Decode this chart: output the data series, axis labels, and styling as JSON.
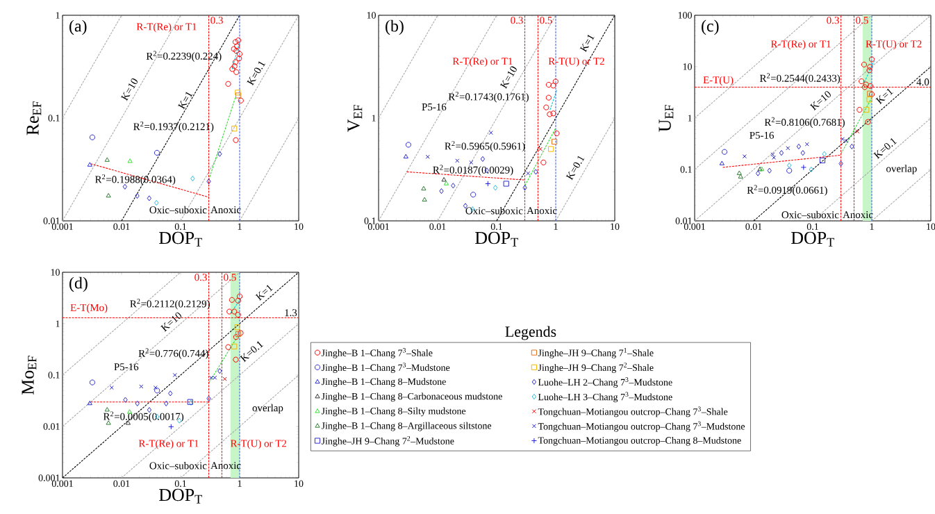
{
  "chart_data": [
    {
      "type": "scatter",
      "title": "(a)",
      "xlabel": "DOP$_{T}$",
      "ylabel": "Re$_{EF}$",
      "log": "xy",
      "xlim": [
        0.001,
        10
      ],
      "ylim": [
        0.01,
        1
      ],
      "xticks": [
        0.001,
        0.01,
        0.1,
        1,
        10
      ],
      "yticks": [
        0.01,
        0.1,
        1
      ],
      "series": [
        {
          "type": "line",
          "color": "#aaaaaa",
          "line_style": "dashed",
          "x": [
            0.001,
            0.01
          ],
          "values": [
            0.1,
            1
          ]
        },
        {
          "type": "line",
          "color": "#aaaaaa",
          "line_style": "dashed",
          "x": [
            0.001,
            0.1
          ],
          "values": [
            0.01,
            1
          ]
        },
        {
          "type": "line",
          "color": "#000000",
          "line_style": "dashed",
          "x": [
            0.01,
            1
          ],
          "values": [
            0.01,
            1
          ]
        },
        {
          "type": "line",
          "color": "#aaaaaa",
          "line_style": "dashed",
          "x": [
            0.1,
            10
          ],
          "values": [
            0.01,
            1
          ]
        },
        {
          "type": "line",
          "color": "#aaaaaa",
          "line_style": "dashed",
          "x": [
            1,
            10
          ],
          "values": [
            0.01,
            0.1
          ]
        },
        {
          "type": "line",
          "color": "#ff0000",
          "line_style": "dashed",
          "x": [
            0.003,
            0.3
          ],
          "values": [
            0.036,
            0.017
          ]
        },
        {
          "type": "line",
          "color": "#33dd33",
          "line_style": "dashed",
          "x": [
            0.3,
            0.85
          ],
          "values": [
            0.025,
            0.16
          ]
        },
        {
          "type": "line",
          "color": "#00ccdd",
          "line_style": "dashed",
          "x": [
            0.75,
            1.0
          ],
          "values": [
            0.3,
            0.55
          ]
        },
        {
          "color": "#ff0000",
          "marker": "circle",
          "x": [
            0.85,
            0.95,
            0.9,
            0.8,
            0.88,
            1.0,
            0.98,
            0.85,
            0.75,
            0.82,
            0.88,
            0.64,
            1.05,
            0.86
          ],
          "values": [
            0.55,
            0.57,
            0.5,
            0.47,
            0.45,
            0.42,
            0.38,
            0.35,
            0.3,
            0.32,
            0.28,
            0.215,
            0.148,
            0.061
          ]
        },
        {
          "color": "#2b2bd0",
          "marker": "circle",
          "x": [
            0.0032,
            0.0398
          ],
          "values": [
            0.065,
            0.046
          ]
        },
        {
          "color": "#2b2bd0",
          "marker": "triangle",
          "x": [
            0.0029
          ],
          "values": [
            0.035
          ]
        },
        {
          "color": "#33dd33",
          "marker": "triangle",
          "x": [
            0.0139
          ],
          "values": [
            0.038
          ]
        },
        {
          "color": "#2e7d32",
          "marker": "triangle",
          "x": [
            0.0057,
            0.006
          ],
          "values": [
            0.039,
            0.0175
          ]
        },
        {
          "color": "#e8701a",
          "marker": "square",
          "x": [
            0.95
          ],
          "values": [
            0.166
          ]
        },
        {
          "color": "#f5b800",
          "marker": "square",
          "x": [
            0.93,
            0.81
          ],
          "values": [
            0.177,
            0.079
          ]
        },
        {
          "color": "#2b2bd0",
          "marker": "diamond",
          "x": [
            0.0114,
            0.0184,
            0.0294,
            0.3,
            0.46
          ],
          "values": [
            0.0215,
            0.0175,
            0.0166,
            0.0242,
            0.0448
          ]
        },
        {
          "color": "#33bbdd",
          "marker": "diamond",
          "x": [
            0.16,
            0.039
          ],
          "values": [
            0.0258,
            0.015
          ]
        }
      ],
      "ref_lines": [
        {
          "axis": "x",
          "value": 0.3,
          "label": "0.3",
          "color": "#ff0000",
          "line_style": "dashed"
        },
        {
          "axis": "x",
          "value": 1,
          "color": "#3355dd",
          "line_style": "dashed"
        }
      ],
      "annotations": [
        "R-T(Re) or T1",
        "R$^{2}$=0.2239(0.224)",
        "R$^{2}$=0.1937(0.2121)",
        "R$^{2}$=0.1988(0.0364)",
        "K=10",
        "K=1",
        "K=0.1",
        "Oxic–suboxic",
        "Anoxic"
      ]
    },
    {
      "type": "scatter",
      "title": "(b)",
      "xlabel": "DOP$_{T}$",
      "ylabel": "V$_{EF}$",
      "log": "xy",
      "xlim": [
        0.001,
        10
      ],
      "ylim": [
        0.1,
        10
      ],
      "xticks": [
        0.001,
        0.01,
        0.1,
        1,
        10
      ],
      "yticks": [
        0.1,
        1,
        10
      ],
      "series": [
        {
          "type": "line",
          "color": "#aaaaaa",
          "line_style": "dashed",
          "x": [
            0.001,
            0.01
          ],
          "values": [
            1,
            10
          ]
        },
        {
          "type": "line",
          "color": "#aaaaaa",
          "line_style": "dashed",
          "x": [
            0.001,
            0.1
          ],
          "values": [
            0.1,
            10
          ]
        },
        {
          "type": "line",
          "color": "#aaaaaa",
          "line_style": "dashed",
          "x": [
            0.01,
            1
          ],
          "values": [
            0.1,
            10
          ]
        },
        {
          "type": "line",
          "color": "#000000",
          "line_style": "dashed",
          "x": [
            0.1,
            10
          ],
          "values": [
            0.1,
            10
          ]
        },
        {
          "type": "line",
          "color": "#aaaaaa",
          "line_style": "dashed",
          "x": [
            1,
            10
          ],
          "values": [
            0.1,
            1
          ]
        },
        {
          "type": "line",
          "color": "#ff0000",
          "line_style": "dashed",
          "x": [
            0.003,
            0.3
          ],
          "values": [
            0.3,
            0.25
          ]
        },
        {
          "type": "line",
          "color": "#33dd33",
          "line_style": "dashed",
          "x": [
            0.3,
            1.0
          ],
          "values": [
            0.22,
            0.8
          ]
        },
        {
          "type": "line",
          "color": "#00ccdd",
          "line_style": "dashed",
          "x": [
            0.8,
            1.05
          ],
          "values": [
            1.2,
            1.9
          ]
        },
        {
          "color": "#ff0000",
          "marker": "circle",
          "x": [
            0.76,
            0.995,
            0.91,
            0.76,
            0.69,
            0.79,
            0.91,
            1.04,
            0.62
          ],
          "values": [
            2.11,
            2.27,
            2.07,
            1.58,
            1.27,
            1.09,
            1.11,
            0.71,
            0.37
          ]
        },
        {
          "color": "#2b2bd0",
          "marker": "circle",
          "x": [
            0.0032,
            0.04
          ],
          "values": [
            0.55,
            0.18
          ]
        },
        {
          "color": "#2b2bd0",
          "marker": "triangle",
          "x": [
            0.0029
          ],
          "values": [
            0.42
          ]
        },
        {
          "color": "#333333",
          "marker": "triangle",
          "x": [
            0.0128
          ],
          "values": [
            0.25
          ]
        },
        {
          "color": "#33dd33",
          "marker": "triangle",
          "x": [
            0.014
          ],
          "values": [
            0.23
          ]
        },
        {
          "color": "#2e7d32",
          "marker": "triangle",
          "x": [
            0.0058,
            0.006
          ],
          "values": [
            0.205,
            0.16
          ]
        },
        {
          "color": "#2b2bd0",
          "marker": "square",
          "x": [
            0.145
          ],
          "values": [
            0.23
          ]
        },
        {
          "color": "#e8701a",
          "marker": "square",
          "x": [
            0.95
          ],
          "values": [
            0.59
          ]
        },
        {
          "color": "#f5b800",
          "marker": "square",
          "x": [
            0.83
          ],
          "values": [
            0.5
          ]
        },
        {
          "color": "#2b2bd0",
          "marker": "diamond",
          "x": [
            0.0116,
            0.0183,
            0.058,
            0.068,
            0.0295,
            0.3,
            0.46
          ],
          "values": [
            0.195,
            0.22,
            0.4,
            0.31,
            0.14,
            0.21,
            0.3
          ]
        },
        {
          "color": "#33bbdd",
          "marker": "diamond",
          "x": [
            0.095,
            0.039
          ],
          "values": [
            0.21,
            0.13
          ]
        },
        {
          "color": "#ff0000",
          "marker": "cross",
          "x": [
            0.55
          ],
          "values": [
            0.5
          ]
        },
        {
          "color": "#2020d0",
          "marker": "cross",
          "x": [
            0.08,
            0.0068,
            0.0215,
            0.037,
            0.34
          ],
          "values": [
            0.72,
            0.42,
            0.385,
            0.37,
            0.29
          ]
        },
        {
          "color": "#2020d0",
          "marker": "plus",
          "x": [
            0.071
          ],
          "values": [
            0.23
          ]
        }
      ],
      "ref_lines": [
        {
          "axis": "x",
          "value": 0.3,
          "label": "0.3",
          "color": "#ff0000",
          "line_style": "dashed"
        },
        {
          "axis": "x",
          "value": 0.5,
          "label": "0.5",
          "color": "#ff0000",
          "line_style": "dashed"
        },
        {
          "axis": "x",
          "value": 1,
          "color": "#3355dd",
          "line_style": "dashed"
        }
      ],
      "annotations": [
        "R-T(Re) or T1",
        "R-T(U) or T2",
        "R$^{2}$=0.1743(0.1761)",
        "P5-16",
        "R$^{2}$=0.5965(0.5961)",
        "R$^{2}$=0.0187(0.0029)",
        "K=10",
        "K=1",
        "K=0.1",
        "Oxic–suboxic",
        "Anoxic"
      ]
    },
    {
      "type": "scatter",
      "title": "(c)",
      "xlabel": "DOP$_{T}$",
      "ylabel": "U$_{EF}$",
      "log": "xy",
      "xlim": [
        0.001,
        10
      ],
      "ylim": [
        0.01,
        100
      ],
      "xticks": [
        0.001,
        0.01,
        0.1,
        1,
        10
      ],
      "yticks": [
        0.01,
        0.1,
        1,
        10,
        100
      ],
      "series": [
        {
          "type": "line",
          "color": "#aaaaaa",
          "line_style": "dashed",
          "x": [
            0.001,
            0.1
          ],
          "values": [
            1,
            100
          ]
        },
        {
          "type": "line",
          "color": "#aaaaaa",
          "line_style": "dashed",
          "x": [
            0.001,
            1
          ],
          "values": [
            0.1,
            100
          ]
        },
        {
          "type": "line",
          "color": "#aaaaaa",
          "line_style": "dashed",
          "x": [
            0.001,
            10
          ],
          "values": [
            0.01,
            100
          ]
        },
        {
          "type": "line",
          "color": "#000000",
          "line_style": "dashed",
          "x": [
            0.01,
            10
          ],
          "values": [
            0.01,
            10
          ]
        },
        {
          "type": "line",
          "color": "#aaaaaa",
          "line_style": "dashed",
          "x": [
            0.1,
            10
          ],
          "values": [
            0.01,
            1
          ]
        },
        {
          "type": "line",
          "color": "#aaaaaa",
          "line_style": "dashed",
          "x": [
            1,
            10
          ],
          "values": [
            0.01,
            0.1
          ]
        },
        {
          "type": "line",
          "color": "#ff0000",
          "line_style": "dashed",
          "x": [
            0.003,
            0.3
          ],
          "values": [
            0.11,
            0.19
          ]
        },
        {
          "type": "line",
          "color": "#33dd33",
          "line_style": "dashed",
          "x": [
            0.3,
            1.0
          ],
          "values": [
            0.2,
            2.5
          ]
        },
        {
          "type": "line",
          "color": "#00ccdd",
          "line_style": "dashed",
          "x": [
            0.75,
            1.1
          ],
          "values": [
            5,
            13
          ]
        },
        {
          "color": "#ff0000",
          "marker": "circle",
          "x": [
            0.74,
            1.0,
            0.93,
            0.91,
            0.67,
            0.8,
            0.95,
            0.76,
            1.0,
            0.62,
            0.86
          ],
          "values": [
            11,
            13.9,
            9.9,
            8.5,
            5.2,
            4.5,
            4.2,
            4.0,
            2.9,
            1.45,
            0.84
          ]
        },
        {
          "color": "#2b2bd0",
          "marker": "circle",
          "x": [
            0.0032,
            0.04
          ],
          "values": [
            0.22,
            0.095
          ]
        },
        {
          "color": "#2b2bd0",
          "marker": "triangle",
          "x": [
            0.0029
          ],
          "values": [
            0.13
          ]
        },
        {
          "color": "#333333",
          "marker": "triangle",
          "x": [
            0.0128
          ],
          "values": [
            0.1
          ]
        },
        {
          "color": "#33dd33",
          "marker": "triangle",
          "x": [
            0.0137
          ],
          "values": [
            0.1
          ]
        },
        {
          "color": "#2e7d32",
          "marker": "triangle",
          "x": [
            0.0057,
            0.006
          ],
          "values": [
            0.084,
            0.072
          ]
        },
        {
          "color": "#2b2bd0",
          "marker": "square",
          "x": [
            0.146
          ],
          "values": [
            0.15
          ]
        },
        {
          "color": "#e8701a",
          "marker": "square",
          "x": [
            0.93
          ],
          "values": [
            3.0
          ]
        },
        {
          "color": "#f5b800",
          "marker": "square",
          "x": [
            0.91,
            0.81
          ],
          "values": [
            2.3,
            1.45
          ]
        },
        {
          "color": "#2b2bd0",
          "marker": "diamond",
          "x": [
            0.0118,
            0.0185,
            0.0295,
            0.058,
            0.068,
            0.3,
            0.46
          ],
          "values": [
            0.084,
            0.095,
            0.21,
            0.28,
            0.21,
            0.13,
            0.28
          ]
        },
        {
          "color": "#33bbdd",
          "marker": "diamond",
          "x": [
            0.094,
            0.04,
            0.157
          ],
          "values": [
            0.1,
            0.12,
            0.2
          ]
        },
        {
          "color": "#ff0000",
          "marker": "cross",
          "x": [
            0.57
          ],
          "values": [
            0.55
          ]
        },
        {
          "color": "#2020d0",
          "marker": "cross",
          "x": [
            0.08,
            0.007,
            0.021,
            0.022,
            0.038,
            0.32,
            0.37
          ],
          "values": [
            0.31,
            0.18,
            0.196,
            0.17,
            0.26,
            0.39,
            0.36
          ]
        },
        {
          "color": "#2020d0",
          "marker": "plus",
          "x": [
            0.07
          ],
          "values": [
            0.11
          ]
        }
      ],
      "ref_lines": [
        {
          "axis": "x",
          "value": 0.3,
          "label": "0.3",
          "color": "#ff0000",
          "line_style": "dashed"
        },
        {
          "axis": "x",
          "value": 0.5,
          "label": "0.5",
          "color": "#ff0000",
          "line_style": "dashed"
        },
        {
          "axis": "x",
          "value": 1,
          "color": "#3355dd",
          "line_style": "dashed"
        },
        {
          "axis": "y",
          "value": 4.0,
          "label": "4.0",
          "color": "#ff0000",
          "line_style": "dashed"
        }
      ],
      "bands": [
        {
          "axis": "x",
          "from": 0.7,
          "to": 1.0,
          "color": "#c8f5c8"
        }
      ],
      "annotations": [
        "R-T(Re) or T1",
        "R-T(U) or T2",
        "E-T(U)",
        "R$^{2}$=0.2544(0.2433)",
        "R$^{2}$=0.8106(0.7681)",
        "P5-16",
        "R$^{2}$=0.0919(0.0661)",
        "K=10",
        "K=1",
        "K=0.1",
        "overlap",
        "Oxic–suboxic",
        "Anoxic"
      ]
    },
    {
      "type": "scatter",
      "title": "(d)",
      "xlabel": "DOP$_{T}$",
      "ylabel": "Mo$_{EF}$",
      "log": "xy",
      "xlim": [
        0.001,
        10
      ],
      "ylim": [
        0.001,
        10
      ],
      "xticks": [
        0.001,
        0.01,
        0.1,
        1,
        10
      ],
      "yticks": [
        0.001,
        0.01,
        0.1,
        1,
        10
      ],
      "legend": "right",
      "legend_title": "Legends",
      "series": [
        {
          "type": "line",
          "color": "#aaaaaa",
          "line_style": "dashed",
          "x": [
            0.001,
            0.1
          ],
          "values": [
            0.1,
            10
          ]
        },
        {
          "type": "line",
          "color": "#aaaaaa",
          "line_style": "dashed",
          "x": [
            0.001,
            1
          ],
          "values": [
            0.01,
            10
          ]
        },
        {
          "type": "line",
          "color": "#000000",
          "line_style": "dashed",
          "x": [
            0.001,
            10
          ],
          "values": [
            0.001,
            10
          ]
        },
        {
          "type": "line",
          "color": "#aaaaaa",
          "line_style": "dashed",
          "x": [
            0.01,
            10
          ],
          "values": [
            0.001,
            1
          ]
        },
        {
          "type": "line",
          "color": "#aaaaaa",
          "line_style": "dashed",
          "x": [
            0.1,
            10
          ],
          "values": [
            0.001,
            0.1
          ]
        },
        {
          "type": "line",
          "color": "#ff0000",
          "line_style": "dashed",
          "x": [
            0.003,
            0.3
          ],
          "values": [
            0.03,
            0.03
          ]
        },
        {
          "type": "line",
          "color": "#33dd33",
          "line_style": "dashed",
          "x": [
            0.3,
            0.95
          ],
          "values": [
            0.07,
            0.6
          ]
        },
        {
          "type": "line",
          "color": "#00ccdd",
          "line_style": "dashed",
          "x": [
            0.7,
            1.1
          ],
          "values": [
            1.6,
            3.3
          ]
        },
        {
          "name": "Jinghe–B 1–Chang 7$^{3}$–Shale",
          "color": "#ff0000",
          "marker": "circle",
          "x": [
            0.74,
            1.0,
            0.94,
            0.67,
            0.81,
            0.94,
            1.04,
            0.87,
            0.64,
            0.86
          ],
          "values": [
            2.9,
            3.4,
            2.8,
            1.72,
            1.72,
            1.49,
            0.66,
            0.55,
            0.35,
            0.2
          ]
        },
        {
          "name": "Jinghe–B 1–Chang 7$^{3}$–Mudstone",
          "color": "#2b2bd0",
          "marker": "circle",
          "x": [
            0.0032,
            0.04
          ],
          "values": [
            0.072,
            0.05
          ]
        },
        {
          "name": "Jinghe–B 1–Chang 8–Mudstone",
          "color": "#2b2bd0",
          "marker": "triangle",
          "x": [
            0.0029
          ],
          "values": [
            0.028
          ]
        },
        {
          "name": "Jinghe–B 1–Chang 8–Carbonaceous mudstone",
          "color": "#333333",
          "marker": "triangle",
          "x": [
            0.0129
          ],
          "values": [
            0.0116
          ]
        },
        {
          "name": "Jinghe–B 1–Chang 8–Silty mudstone",
          "color": "#33dd33",
          "marker": "triangle",
          "x": [
            0.0137
          ],
          "values": [
            0.019
          ]
        },
        {
          "name": "Jinghe–B 1–Chang 8–Argillaceous siltstone",
          "color": "#2e7d32",
          "marker": "triangle",
          "x": [
            0.0057,
            0.006
          ],
          "values": [
            0.021,
            0.0116
          ]
        },
        {
          "name": "Jinghe–JH 9–Chang 7$^{2}$–Mudstone",
          "color": "#2b2bd0",
          "marker": "square",
          "x": [
            0.145
          ],
          "values": [
            0.03
          ]
        },
        {
          "name": "Jinghe–JH 9–Chang 7$^{1}$–Shale",
          "color": "#e8701a",
          "marker": "square",
          "x": [
            0.95
          ],
          "values": [
            0.63
          ]
        },
        {
          "name": "Jinghe–JH 9–Chang 7$^{2}$–Shale",
          "color": "#f5b800",
          "marker": "square",
          "x": [
            0.91,
            0.81
          ],
          "values": [
            0.85,
            0.36
          ]
        },
        {
          "name": "Luohe–LH 2–Chang 7$^{3}$–Mudstone",
          "color": "#2b2bd0",
          "marker": "diamond",
          "x": [
            0.0116,
            0.0185,
            0.0295,
            0.057,
            0.067,
            0.3,
            0.46
          ],
          "values": [
            0.033,
            0.028,
            0.021,
            0.028,
            0.044,
            0.035,
            0.12
          ]
        },
        {
          "name": "Luohe–LH 3–Chang 7$^{3}$–Mudstone",
          "color": "#33bbdd",
          "marker": "diamond",
          "x": [
            0.095,
            0.15,
            0.04
          ],
          "values": [
            0.013,
            0.029,
            0.0155
          ]
        },
        {
          "name": "Tongchuan–Motiangou outcrop–Chang 7$^{3}$–Shale",
          "color": "#ff0000",
          "marker": "cross",
          "x": [
            0.56
          ],
          "values": [
            0.084
          ]
        },
        {
          "name": "Tongchuan–Motiangou outcrop–Chang 7$^{3}$–Mudstone",
          "color": "#2020d0",
          "marker": "cross",
          "x": [
            0.08,
            0.0068,
            0.0215,
            0.0375,
            0.33,
            0.38
          ],
          "values": [
            0.1,
            0.057,
            0.06,
            0.057,
            0.089,
            0.089
          ]
        },
        {
          "name": "Tongchuan–Motiangou outcrop–Chang 8–Mudstone",
          "color": "#2020d0",
          "marker": "plus",
          "x": [
            0.069
          ],
          "values": [
            0.0099
          ]
        }
      ],
      "ref_lines": [
        {
          "axis": "x",
          "value": 0.3,
          "label": "0.3",
          "color": "#ff0000",
          "line_style": "dashed"
        },
        {
          "axis": "x",
          "value": 0.5,
          "label": "0.5",
          "color": "#ff0000",
          "line_style": "dashed"
        },
        {
          "axis": "x",
          "value": 1,
          "color": "#3355dd",
          "line_style": "dashed"
        },
        {
          "axis": "y",
          "value": 1.3,
          "label": "1.3",
          "color": "#ff0000",
          "line_style": "dashed"
        }
      ],
      "bands": [
        {
          "axis": "x",
          "from": 0.7,
          "to": 1.0,
          "color": "#c8f5c8"
        }
      ],
      "annotations": [
        "E-T(Mo)",
        "R$^{2}$=0.2112(0.2129)",
        "K=10",
        "K=1",
        "K=0.1",
        "R$^{2}$=0.776(0.744)",
        "P5-16",
        "R$^{2}$=0.0005(0.0017)",
        "overlap",
        "R-T(Re) or T1",
        "R-T(U) or T2",
        "Oxic–suboxic",
        "Anoxic"
      ]
    }
  ]
}
